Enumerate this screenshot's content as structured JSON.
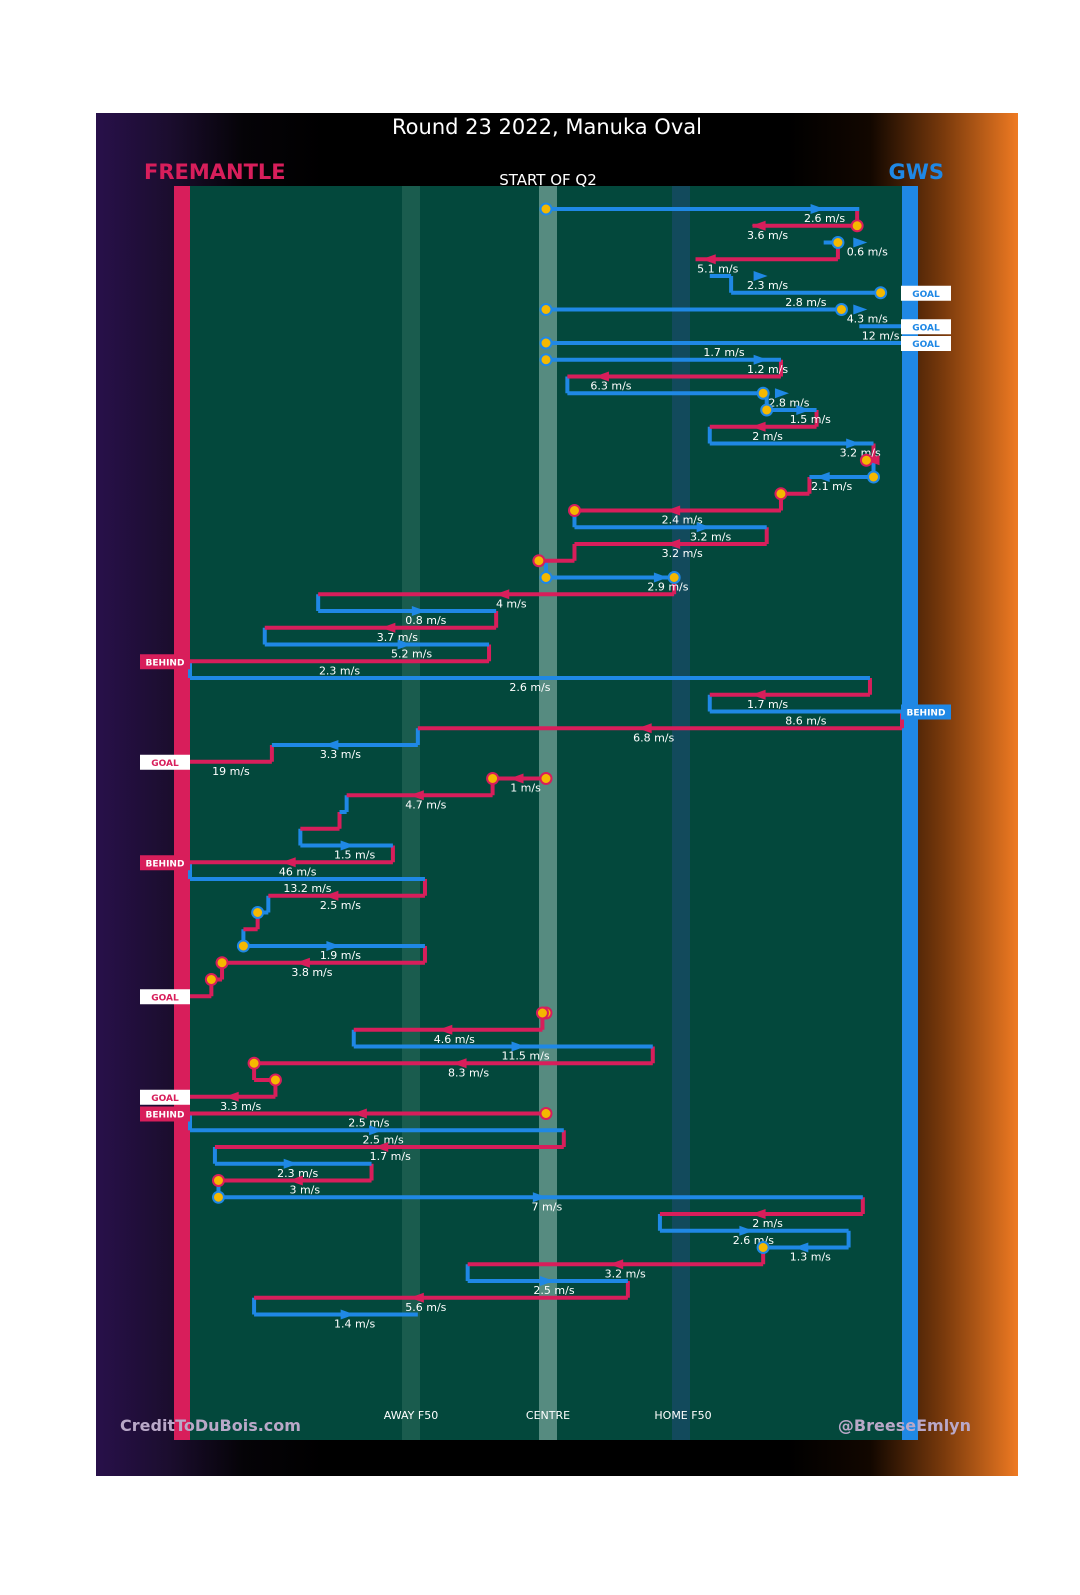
{
  "title": "Round 23 2022, Manuka Oval",
  "subtitle": "START OF Q2",
  "teams": {
    "left": {
      "name": "FREMANTLE",
      "color": "#d81e5b"
    },
    "right": {
      "name": "GWS",
      "color": "#1f88e5"
    }
  },
  "x_axis": {
    "labels": [
      "AWAY F50",
      "CENTRE",
      "HOME F50"
    ]
  },
  "footer": {
    "left": "CreditToDuBois.com",
    "right": "@BreeseEmlyn"
  },
  "colors": {
    "field": "#03483c",
    "fremantle": "#d81e5b",
    "gws": "#1f88e5",
    "marker": "#f5b800"
  },
  "chart_data": {
    "type": "line",
    "x_scale": "field position from Fremantle goal (0) to GWS goal (100)",
    "chains": [
      {
        "team": "gws",
        "x_from": 50,
        "x_to": 94,
        "step_to": 88,
        "speed": "2.6 m/s",
        "start_marker": true,
        "end_marker": false
      },
      {
        "team": "fremantle",
        "x_from": 93.7,
        "x_to": 79,
        "step_to": 80,
        "speed": "3.6 m/s",
        "start_marker": true,
        "end_marker": false
      },
      {
        "team": "gws",
        "x_from": 89,
        "x_to": 91,
        "step_to": 94,
        "speed": "0.6 m/s",
        "start_marker": false,
        "end_marker": true
      },
      {
        "team": "fremantle",
        "x_from": 91,
        "x_to": 71,
        "step_to": 73,
        "speed": "5.1 m/s",
        "start_marker": false,
        "end_marker": false
      },
      {
        "team": "gws",
        "x_from": 73,
        "x_to": 76,
        "step_to": 80,
        "speed": "2.3 m/s",
        "start_marker": false,
        "end_marker": false
      },
      {
        "team": "gws",
        "x_from": 76,
        "x_to": 97,
        "speed": "2.8 m/s",
        "start_marker": false,
        "end_marker": true,
        "outcome": "GOAL"
      },
      {
        "team": "gws",
        "x_from": 50,
        "x_to": 91.5,
        "step_to": 94,
        "speed": "4.3 m/s",
        "start_marker": true,
        "end_marker": true
      },
      {
        "team": "gws",
        "x_from": 94,
        "x_to": 100,
        "speed": "12 m/s",
        "start_marker": false,
        "end_marker": false,
        "outcome": "GOAL"
      },
      {
        "team": "gws",
        "x_from": 50,
        "x_to": 100,
        "speed": "1.7 m/s",
        "start_marker": true,
        "end_marker": false,
        "outcome": "GOAL"
      },
      {
        "team": "gws",
        "x_from": 50,
        "x_to": 83,
        "step_to": 80,
        "speed": "1.2 m/s",
        "start_marker": true,
        "end_marker": false
      },
      {
        "team": "fremantle",
        "x_from": 83,
        "x_to": 53,
        "step_to": 58,
        "speed": "6.3 m/s",
        "start_marker": false,
        "end_marker": false
      },
      {
        "team": "gws",
        "x_from": 53,
        "x_to": 80.5,
        "step_to": 83,
        "speed": "2.8 m/s",
        "start_marker": false,
        "end_marker": true
      },
      {
        "team": "gws",
        "x_from": 81,
        "x_to": 88,
        "step_to": 86,
        "speed": "1.5 m/s",
        "start_marker": true,
        "end_marker": false
      },
      {
        "team": "fremantle",
        "x_from": 88,
        "x_to": 73,
        "step_to": 80,
        "speed": "2 m/s",
        "start_marker": false,
        "end_marker": false
      },
      {
        "team": "gws",
        "x_from": 73,
        "x_to": 96,
        "step_to": 93,
        "speed": "3.2 m/s",
        "start_marker": false,
        "end_marker": false
      },
      {
        "team": "fremantle",
        "x_from": 96,
        "x_to": 95,
        "step_to": 96,
        "speed": "",
        "start_marker": false,
        "end_marker": true
      },
      {
        "team": "gws",
        "x_from": 96,
        "x_to": 87,
        "step_to": 89,
        "speed": "2.1 m/s",
        "start_marker": true,
        "end_marker": false
      },
      {
        "team": "fremantle",
        "x_from": 87,
        "x_to": 83,
        "speed": "",
        "start_marker": false,
        "end_marker": true
      },
      {
        "team": "fremantle",
        "x_from": 83,
        "x_to": 54,
        "step_to": 68,
        "speed": "2.4 m/s",
        "start_marker": false,
        "end_marker": true
      },
      {
        "team": "gws",
        "x_from": 54,
        "x_to": 81,
        "step_to": 72,
        "speed": "3.2 m/s",
        "start_marker": false,
        "end_marker": false
      },
      {
        "team": "fremantle",
        "x_from": 81,
        "x_to": 54,
        "step_to": 68,
        "speed": "3.2 m/s",
        "start_marker": false,
        "end_marker": false
      },
      {
        "team": "fremantle",
        "x_from": 54,
        "x_to": 49,
        "speed": "",
        "start_marker": false,
        "end_marker": true
      },
      {
        "team": "gws",
        "x_from": 50,
        "x_to": 68,
        "step_to": 66,
        "speed": "2.9 m/s",
        "start_marker": true,
        "end_marker": true
      },
      {
        "team": "fremantle",
        "x_from": 68,
        "x_to": 18,
        "step_to": 44,
        "speed": "4 m/s",
        "start_marker": false,
        "end_marker": false
      },
      {
        "team": "gws",
        "x_from": 18,
        "x_to": 43,
        "step_to": 32,
        "speed": "0.8 m/s",
        "start_marker": false,
        "end_marker": false
      },
      {
        "team": "fremantle",
        "x_from": 43,
        "x_to": 10.5,
        "step_to": 28,
        "speed": "3.7 m/s",
        "start_marker": false,
        "end_marker": false
      },
      {
        "team": "gws",
        "x_from": 10.5,
        "x_to": 42,
        "step_to": 30,
        "speed": "5.2 m/s",
        "start_marker": false,
        "end_marker": false
      },
      {
        "team": "fremantle",
        "x_from": 42,
        "x_to": 0,
        "speed": "2.3 m/s",
        "start_marker": false,
        "end_marker": false,
        "outcome": "BEHIND"
      },
      {
        "team": "gws",
        "x_from": 0,
        "x_to": 95.5,
        "speed": "2.6 m/s",
        "start_marker": false,
        "end_marker": false
      },
      {
        "team": "fremantle",
        "x_from": 95.5,
        "x_to": 73,
        "step_to": 80,
        "speed": "1.7 m/s",
        "start_marker": false,
        "end_marker": false
      },
      {
        "team": "gws",
        "x_from": 73,
        "x_to": 100,
        "speed": "8.6 m/s",
        "start_marker": false,
        "end_marker": false,
        "outcome": "BEHIND"
      },
      {
        "team": "fremantle",
        "x_from": 100,
        "x_to": 32,
        "step_to": 64,
        "speed": "6.8 m/s",
        "start_marker": false,
        "end_marker": false
      },
      {
        "team": "gws",
        "x_from": 32,
        "x_to": 11.5,
        "step_to": 20,
        "speed": "3.3 m/s",
        "start_marker": false,
        "end_marker": false
      },
      {
        "team": "fremantle",
        "x_from": 11.5,
        "x_to": 0,
        "speed": "19 m/s",
        "start_marker": false,
        "end_marker": false,
        "outcome": "GOAL"
      },
      {
        "team": "fremantle",
        "x_from": 50,
        "x_to": 42.5,
        "step_to": 46,
        "speed": "1 m/s",
        "start_marker": true,
        "end_marker": true
      },
      {
        "team": "fremantle",
        "x_from": 42.5,
        "x_to": 22,
        "step_to": 32,
        "speed": "4.7 m/s",
        "start_marker": false,
        "end_marker": false
      },
      {
        "team": "gws",
        "x_from": 22,
        "x_to": 21,
        "speed": "",
        "start_marker": false,
        "end_marker": false
      },
      {
        "team": "fremantle",
        "x_from": 21,
        "x_to": 15.5,
        "speed": "",
        "start_marker": false,
        "end_marker": false
      },
      {
        "team": "gws",
        "x_from": 15.5,
        "x_to": 28.5,
        "step_to": 22,
        "speed": "1.5 m/s",
        "start_marker": false,
        "end_marker": false
      },
      {
        "team": "fremantle",
        "x_from": 28.5,
        "x_to": 0,
        "step_to": 14,
        "speed": "46 m/s",
        "start_marker": false,
        "end_marker": false,
        "outcome": "BEHIND"
      },
      {
        "team": "gws",
        "x_from": 0,
        "x_to": 33,
        "speed": "13.2 m/s",
        "start_marker": false,
        "end_marker": false
      },
      {
        "team": "fremantle",
        "x_from": 33,
        "x_to": 11,
        "step_to": 20,
        "speed": "2.5 m/s",
        "start_marker": false,
        "end_marker": false
      },
      {
        "team": "gws",
        "x_from": 11,
        "x_to": 9.5,
        "speed": "",
        "start_marker": false,
        "end_marker": true
      },
      {
        "team": "fremantle",
        "x_from": 9.5,
        "x_to": 7.5,
        "speed": "",
        "start_marker": false,
        "end_marker": false
      },
      {
        "team": "gws",
        "x_from": 7.5,
        "x_to": 33,
        "step_to": 20,
        "speed": "1.9 m/s",
        "start_marker": true,
        "end_marker": false
      },
      {
        "team": "fremantle",
        "x_from": 33,
        "x_to": 4.5,
        "step_to": 16,
        "speed": "3.8 m/s",
        "start_marker": false,
        "end_marker": true
      },
      {
        "team": "fremantle",
        "x_from": 4.5,
        "x_to": 3,
        "speed": "",
        "start_marker": false,
        "end_marker": true
      },
      {
        "team": "fremantle",
        "x_from": 3,
        "x_to": 0,
        "speed": "",
        "start_marker": false,
        "end_marker": false,
        "outcome": "GOAL"
      },
      {
        "team": "fremantle",
        "x_from": 50,
        "x_to": 49.5,
        "speed": "",
        "start_marker": true,
        "end_marker": true
      },
      {
        "team": "fremantle",
        "x_from": 49.5,
        "x_to": 23,
        "step_to": 36,
        "speed": "4.6 m/s",
        "start_marker": false,
        "end_marker": false
      },
      {
        "team": "gws",
        "x_from": 23,
        "x_to": 65,
        "step_to": 46,
        "speed": "11.5 m/s",
        "start_marker": false,
        "end_marker": false
      },
      {
        "team": "fremantle",
        "x_from": 65,
        "x_to": 9,
        "step_to": 38,
        "speed": "8.3 m/s",
        "start_marker": false,
        "end_marker": true
      },
      {
        "team": "fremantle",
        "x_from": 9,
        "x_to": 12,
        "speed": "",
        "start_marker": false,
        "end_marker": true
      },
      {
        "team": "fremantle",
        "x_from": 12,
        "x_to": 0,
        "step_to": 6,
        "speed": "3.3 m/s",
        "start_marker": false,
        "end_marker": false,
        "outcome": "GOAL"
      },
      {
        "team": "fremantle",
        "x_from": 50,
        "x_to": 0,
        "step_to": 24,
        "speed": "2.5 m/s",
        "start_marker": true,
        "end_marker": false,
        "outcome": "BEHIND"
      },
      {
        "team": "gws",
        "x_from": 0,
        "x_to": 52.5,
        "step_to": 26,
        "speed": "2.5 m/s",
        "start_marker": false,
        "end_marker": false
      },
      {
        "team": "fremantle",
        "x_from": 52.5,
        "x_to": 3.5,
        "step_to": 27,
        "speed": "1.7 m/s",
        "start_marker": false,
        "end_marker": false
      },
      {
        "team": "gws",
        "x_from": 3.5,
        "x_to": 25.5,
        "step_to": 14,
        "speed": "2.3 m/s",
        "start_marker": false,
        "end_marker": false
      },
      {
        "team": "fremantle",
        "x_from": 25.5,
        "x_to": 4,
        "step_to": 15,
        "speed": "3 m/s",
        "start_marker": false,
        "end_marker": true
      },
      {
        "team": "gws",
        "x_from": 4,
        "x_to": 94.5,
        "step_to": 49,
        "speed": "7 m/s",
        "start_marker": true,
        "end_marker": false
      },
      {
        "team": "fremantle",
        "x_from": 94.5,
        "x_to": 66,
        "step_to": 80,
        "speed": "2 m/s",
        "start_marker": false,
        "end_marker": false
      },
      {
        "team": "gws",
        "x_from": 66,
        "x_to": 92.5,
        "step_to": 78,
        "speed": "2.6 m/s",
        "start_marker": false,
        "end_marker": false
      },
      {
        "team": "gws",
        "x_from": 92.5,
        "x_to": 80.5,
        "step_to": 86,
        "speed": "1.3 m/s",
        "start_marker": false,
        "end_marker": true
      },
      {
        "team": "fremantle",
        "x_from": 80.5,
        "x_to": 39,
        "step_to": 60,
        "speed": "3.2 m/s",
        "start_marker": false,
        "end_marker": false
      },
      {
        "team": "gws",
        "x_from": 39,
        "x_to": 61.5,
        "step_to": 50,
        "speed": "2.5 m/s",
        "start_marker": false,
        "end_marker": false
      },
      {
        "team": "fremantle",
        "x_from": 61.5,
        "x_to": 9,
        "step_to": 32,
        "speed": "5.6 m/s",
        "start_marker": false,
        "end_marker": false
      },
      {
        "team": "gws",
        "x_from": 9,
        "x_to": 32,
        "step_to": 22,
        "speed": "1.4 m/s",
        "start_marker": false,
        "end_marker": false
      }
    ]
  }
}
